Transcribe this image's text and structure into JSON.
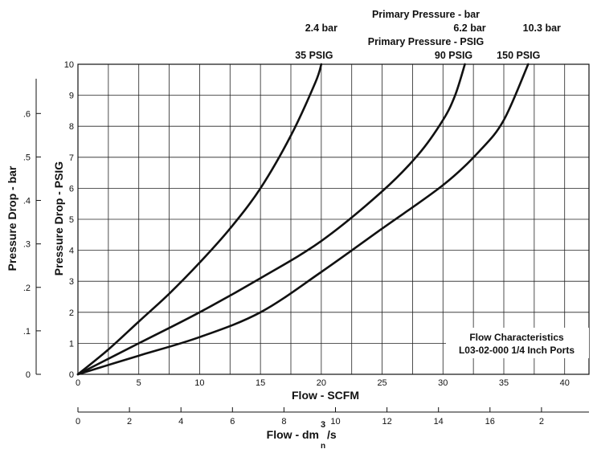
{
  "chart_data": {
    "type": "line",
    "title": "",
    "annotation": {
      "line1": "Flow Characteristics",
      "line2": "L03-02-000 1/4 Inch Ports"
    },
    "top_labels": {
      "bar_heading": "Primary Pressure - bar",
      "psig_heading": "Primary Pressure - PSIG"
    },
    "xlabel": "Flow - SCFM",
    "ylabel": "Pressure Drop - PSIG",
    "xlim": [
      0,
      42
    ],
    "ylim": [
      0,
      10
    ],
    "x_ticks": [
      0,
      5,
      10,
      15,
      20,
      25,
      30,
      35,
      40
    ],
    "y_ticks": [
      0,
      1,
      2,
      3,
      4,
      5,
      6,
      7,
      8,
      9,
      10
    ],
    "grid": true,
    "secondary_y": {
      "label": "Pressure Drop - bar",
      "ticks": [
        "0",
        ".1",
        ".2",
        ".3",
        ".4",
        ".5",
        ".6"
      ]
    },
    "secondary_x": {
      "label": "Flow - dm",
      "label_sup": "3",
      "label_suffix": "/s",
      "label_sub": "n",
      "ticks": [
        "0",
        "2",
        "4",
        "6",
        "8",
        "10",
        "12",
        "14",
        "16",
        "2"
      ]
    },
    "series": [
      {
        "name": "35 PSIG",
        "bar_label": "2.4 bar",
        "x": [
          0,
          2.5,
          5,
          7.5,
          10,
          12.5,
          15,
          17.5,
          19.5,
          20
        ],
        "y": [
          0,
          0.8,
          1.7,
          2.6,
          3.6,
          4.7,
          6.0,
          7.7,
          9.4,
          10
        ]
      },
      {
        "name": "90 PSIG",
        "bar_label": "6.2 bar",
        "x": [
          0,
          5,
          10,
          15,
          20,
          25,
          28,
          30,
          31,
          31.8
        ],
        "y": [
          0,
          1.0,
          2.0,
          3.1,
          4.3,
          5.9,
          7.1,
          8.2,
          9.0,
          10
        ]
      },
      {
        "name": "150 PSIG",
        "bar_label": "10.3 bar",
        "x": [
          0,
          5,
          10,
          15,
          20,
          25,
          30,
          33,
          35,
          37
        ],
        "y": [
          0,
          0.6,
          1.2,
          2.0,
          3.3,
          4.7,
          6.1,
          7.2,
          8.2,
          10
        ]
      }
    ]
  }
}
